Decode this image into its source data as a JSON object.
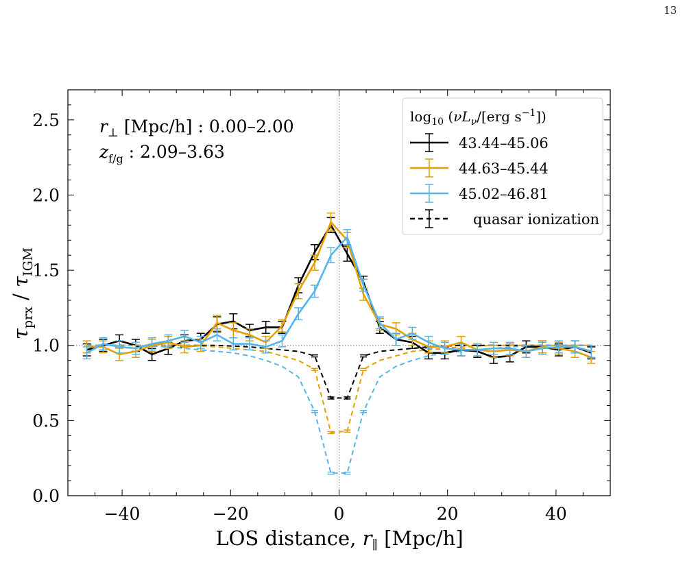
{
  "page": {
    "number": "13"
  },
  "chart_data": {
    "type": "line",
    "xlabel": "LOS distance, r∥ [Mpc/h]",
    "ylabel": "τprx / τIGM",
    "xlim": [
      -50,
      50
    ],
    "ylim": [
      0,
      2.7
    ],
    "x_ticks": [
      -40,
      -20,
      0,
      20,
      40
    ],
    "y_ticks": [
      0.0,
      0.5,
      1.0,
      1.5,
      2.0,
      2.5
    ],
    "x_tick_labels": [
      "−40",
      "−20",
      "0",
      "20",
      "40"
    ],
    "y_tick_labels": [
      "0.0",
      "0.5",
      "1.0",
      "1.5",
      "2.0",
      "2.5"
    ],
    "grid": false,
    "reference_lines": {
      "x": 0,
      "y": 1.0
    },
    "annotations": [
      "r⊥ [Mpc/h] : 0.00–2.00",
      "zf/g : 2.09–3.63"
    ],
    "legend": {
      "placement": "top-right",
      "title": "log10 (νLν/[erg s−1])"
    },
    "colors": {
      "black": "#000000",
      "orange": "#e69f00",
      "blue": "#56b4e9"
    },
    "x": [
      -46.5,
      -43.5,
      -40.5,
      -37.5,
      -34.5,
      -31.5,
      -28.5,
      -25.5,
      -22.5,
      -19.5,
      -16.5,
      -13.5,
      -10.5,
      -7.5,
      -4.5,
      -1.5,
      1.5,
      4.5,
      7.5,
      10.5,
      13.5,
      16.5,
      19.5,
      22.5,
      25.5,
      28.5,
      31.5,
      34.5,
      37.5,
      40.5,
      43.5,
      46.5
    ],
    "series": [
      {
        "name": "43.44–45.06",
        "color": "#000000",
        "style": "solid",
        "values": [
          0.97,
          1.0,
          1.03,
          1.0,
          0.94,
          0.98,
          1.03,
          1.04,
          1.14,
          1.16,
          1.1,
          1.12,
          1.12,
          1.4,
          1.62,
          1.8,
          1.61,
          1.42,
          1.12,
          1.04,
          1.02,
          0.95,
          0.95,
          0.97,
          0.96,
          0.92,
          0.93,
          0.99,
          0.99,
          0.97,
          0.99,
          0.95
        ],
        "errors": [
          0.04,
          0.04,
          0.04,
          0.04,
          0.04,
          0.04,
          0.04,
          0.04,
          0.05,
          0.05,
          0.04,
          0.04,
          0.04,
          0.05,
          0.05,
          0.05,
          0.05,
          0.04,
          0.04,
          0.04,
          0.04,
          0.04,
          0.04,
          0.04,
          0.04,
          0.04,
          0.04,
          0.04,
          0.04,
          0.04,
          0.04,
          0.04
        ]
      },
      {
        "name": "44.63–45.44",
        "color": "#e69f00",
        "style": "solid",
        "values": [
          0.99,
          0.99,
          0.94,
          0.96,
          1.0,
          1.02,
          0.99,
          1.0,
          1.15,
          1.1,
          1.07,
          1.02,
          1.13,
          1.36,
          1.55,
          1.82,
          1.7,
          1.34,
          1.14,
          1.11,
          1.04,
          0.99,
          0.99,
          1.02,
          0.97,
          0.96,
          0.97,
          0.96,
          0.99,
          0.98,
          0.96,
          0.92
        ],
        "errors": [
          0.04,
          0.04,
          0.04,
          0.04,
          0.04,
          0.04,
          0.04,
          0.04,
          0.05,
          0.05,
          0.04,
          0.04,
          0.04,
          0.05,
          0.05,
          0.06,
          0.05,
          0.04,
          0.04,
          0.04,
          0.04,
          0.04,
          0.04,
          0.04,
          0.04,
          0.04,
          0.04,
          0.04,
          0.04,
          0.04,
          0.04,
          0.04
        ]
      },
      {
        "name": "45.02–46.81",
        "color": "#56b4e9",
        "style": "solid",
        "values": [
          0.95,
          1.01,
          0.99,
          0.98,
          1.01,
          1.03,
          1.06,
          1.02,
          1.07,
          1.01,
          1.01,
          0.99,
          1.03,
          1.21,
          1.36,
          1.6,
          1.72,
          1.4,
          1.15,
          1.04,
          1.08,
          1.02,
          0.98,
          0.97,
          0.97,
          0.98,
          0.98,
          0.96,
          0.98,
          0.99,
          0.99,
          0.96
        ],
        "errors": [
          0.04,
          0.04,
          0.04,
          0.04,
          0.04,
          0.04,
          0.04,
          0.04,
          0.04,
          0.04,
          0.04,
          0.04,
          0.04,
          0.04,
          0.04,
          0.05,
          0.05,
          0.04,
          0.04,
          0.04,
          0.04,
          0.04,
          0.04,
          0.04,
          0.04,
          0.04,
          0.04,
          0.04,
          0.04,
          0.04,
          0.04,
          0.04
        ]
      }
    ],
    "ionization_series": [
      {
        "name": "quasar ionization",
        "color": "#000000",
        "style": "dashed",
        "values": [
          1.0,
          1.0,
          1.0,
          1.0,
          1.0,
          1.0,
          1.0,
          1.0,
          1.0,
          0.995,
          0.99,
          0.98,
          0.97,
          0.96,
          0.93,
          0.65,
          0.65,
          0.93,
          0.96,
          0.97,
          0.98,
          0.99,
          0.995,
          1.0,
          1.0,
          1.0,
          1.0,
          1.0,
          1.0,
          1.0,
          1.0,
          1.0
        ]
      },
      {
        "name": "",
        "color": "#e69f00",
        "style": "dashed",
        "values": [
          1.0,
          1.0,
          1.0,
          1.0,
          1.0,
          1.0,
          1.0,
          0.995,
          0.99,
          0.98,
          0.97,
          0.96,
          0.93,
          0.9,
          0.84,
          0.42,
          0.43,
          0.84,
          0.9,
          0.93,
          0.96,
          0.97,
          0.98,
          0.99,
          0.995,
          1.0,
          1.0,
          1.0,
          1.0,
          1.0,
          1.0,
          1.0
        ]
      },
      {
        "name": "",
        "color": "#56b4e9",
        "style": "dashed",
        "values": [
          1.0,
          1.0,
          1.0,
          1.0,
          0.995,
          0.99,
          0.98,
          0.97,
          0.96,
          0.95,
          0.93,
          0.9,
          0.86,
          0.79,
          0.56,
          0.15,
          0.15,
          0.56,
          0.79,
          0.86,
          0.9,
          0.93,
          0.95,
          0.96,
          0.97,
          0.98,
          0.99,
          0.995,
          1.0,
          1.0,
          1.0,
          1.0
        ]
      }
    ]
  }
}
